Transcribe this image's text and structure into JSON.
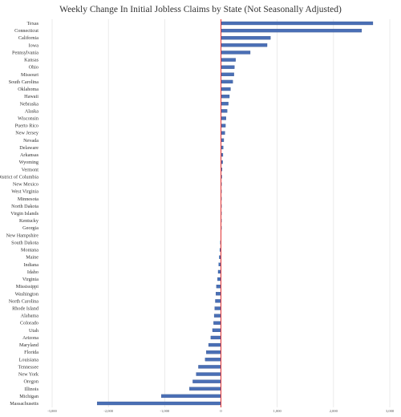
{
  "colors": {
    "bar": "#4a6fb5",
    "bar_edge": "#2c4a86",
    "zero_line": "#e23030",
    "grid": "#e3e3e3"
  },
  "chart_data": {
    "type": "bar",
    "orientation": "horizontal",
    "title": "Weekly Change In Initial Jobless Claims by State (Not Seasonally Adjusted)",
    "xlabel": "",
    "ylabel": "",
    "xlim": [
      -3000,
      3000
    ],
    "xticks": [
      -3000,
      -2000,
      -1000,
      0,
      1000,
      2000,
      3000
    ],
    "xtick_labels": [
      "-3,000",
      "-2,000",
      "-1,000",
      "0",
      "1,000",
      "2,000",
      "3,000"
    ],
    "grid": true,
    "categories": [
      "Texas",
      "Connecticut",
      "California",
      "Iowa",
      "Pennsylvania",
      "Kansas",
      "Ohio",
      "Missouri",
      "South Carolina",
      "Oklahoma",
      "Hawaii",
      "Nebraska",
      "Alaska",
      "Wisconsin",
      "Puerto Rico",
      "New Jersey",
      "Nevada",
      "Delaware",
      "Arkansas",
      "Wyoming",
      "Vermont",
      "District of Columbia",
      "New Mexico",
      "West Virginia",
      "Minnesota",
      "North Dakota",
      "Virgin Islands",
      "Kentucky",
      "Georgia",
      "New Hampshire",
      "South Dakota",
      "Montana",
      "Maine",
      "Indiana",
      "Idaho",
      "Virginia",
      "Mississippi",
      "Washington",
      "North Carolina",
      "Rhode Island",
      "Alabama",
      "Colorado",
      "Utah",
      "Arizona",
      "Maryland",
      "Florida",
      "Louisiana",
      "Tennessee",
      "New York",
      "Oregon",
      "Illinois",
      "Michigan",
      "Massachusetts"
    ],
    "values": [
      2700,
      2500,
      880,
      820,
      520,
      260,
      240,
      230,
      210,
      170,
      150,
      130,
      110,
      90,
      80,
      70,
      50,
      40,
      35,
      30,
      20,
      15,
      10,
      5,
      3,
      2,
      1,
      0,
      0,
      -5,
      -10,
      -20,
      -30,
      -40,
      -50,
      -60,
      -80,
      -90,
      -100,
      -110,
      -120,
      -130,
      -150,
      -180,
      -220,
      -260,
      -280,
      -400,
      -440,
      -500,
      -560,
      -1060,
      -2200
    ]
  }
}
